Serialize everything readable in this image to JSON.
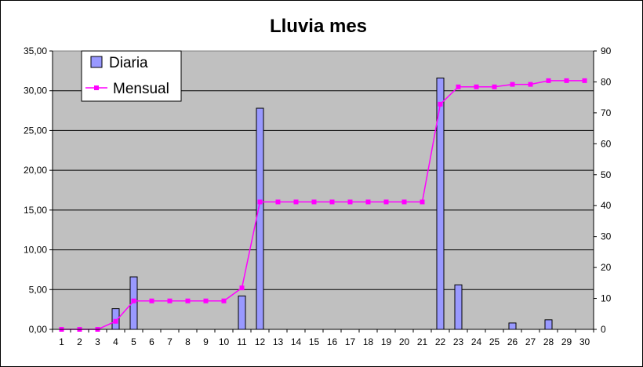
{
  "chart_data": {
    "type": "bar",
    "title": "Lluvia mes",
    "categories": [
      "1",
      "2",
      "3",
      "4",
      "5",
      "6",
      "7",
      "8",
      "9",
      "10",
      "11",
      "12",
      "13",
      "14",
      "15",
      "16",
      "17",
      "18",
      "19",
      "20",
      "21",
      "22",
      "23",
      "24",
      "25",
      "26",
      "27",
      "28",
      "29",
      "30"
    ],
    "series": [
      {
        "name": "Diaria",
        "type": "bar",
        "axis": "left",
        "values": [
          0,
          0,
          0,
          2.6,
          6.6,
          0,
          0,
          0,
          0,
          0,
          4.2,
          27.8,
          0,
          0,
          0,
          0,
          0,
          0,
          0,
          0,
          0,
          31.6,
          5.6,
          0,
          0,
          0.8,
          0,
          1.2,
          0,
          0
        ]
      },
      {
        "name": "Mensual",
        "type": "line",
        "axis": "right",
        "values": [
          0,
          0,
          0,
          2.6,
          9.2,
          9.2,
          9.2,
          9.2,
          9.2,
          9.2,
          13.4,
          41.2,
          41.2,
          41.2,
          41.2,
          41.2,
          41.2,
          41.2,
          41.2,
          41.2,
          41.2,
          72.8,
          78.4,
          78.4,
          78.4,
          79.2,
          79.2,
          80.4,
          80.4,
          80.4
        ]
      }
    ],
    "y_left": {
      "min": 0,
      "max": 35,
      "step": 5,
      "tick_labels": [
        "0,00",
        "5,00",
        "10,00",
        "15,00",
        "20,00",
        "25,00",
        "30,00",
        "35,00"
      ]
    },
    "y_right": {
      "min": 0,
      "max": 90,
      "step": 10,
      "tick_labels": [
        "0",
        "10",
        "20",
        "30",
        "40",
        "50",
        "60",
        "70",
        "80",
        "90"
      ]
    },
    "grid": true,
    "legend_position": "top-left",
    "colors": {
      "plot_background": "#c0c0c0",
      "bar_fill": "#9999ff",
      "bar_stroke": "#000000",
      "line": "#ff00ff",
      "marker": "#ff00ff",
      "gridline": "#000000"
    }
  }
}
